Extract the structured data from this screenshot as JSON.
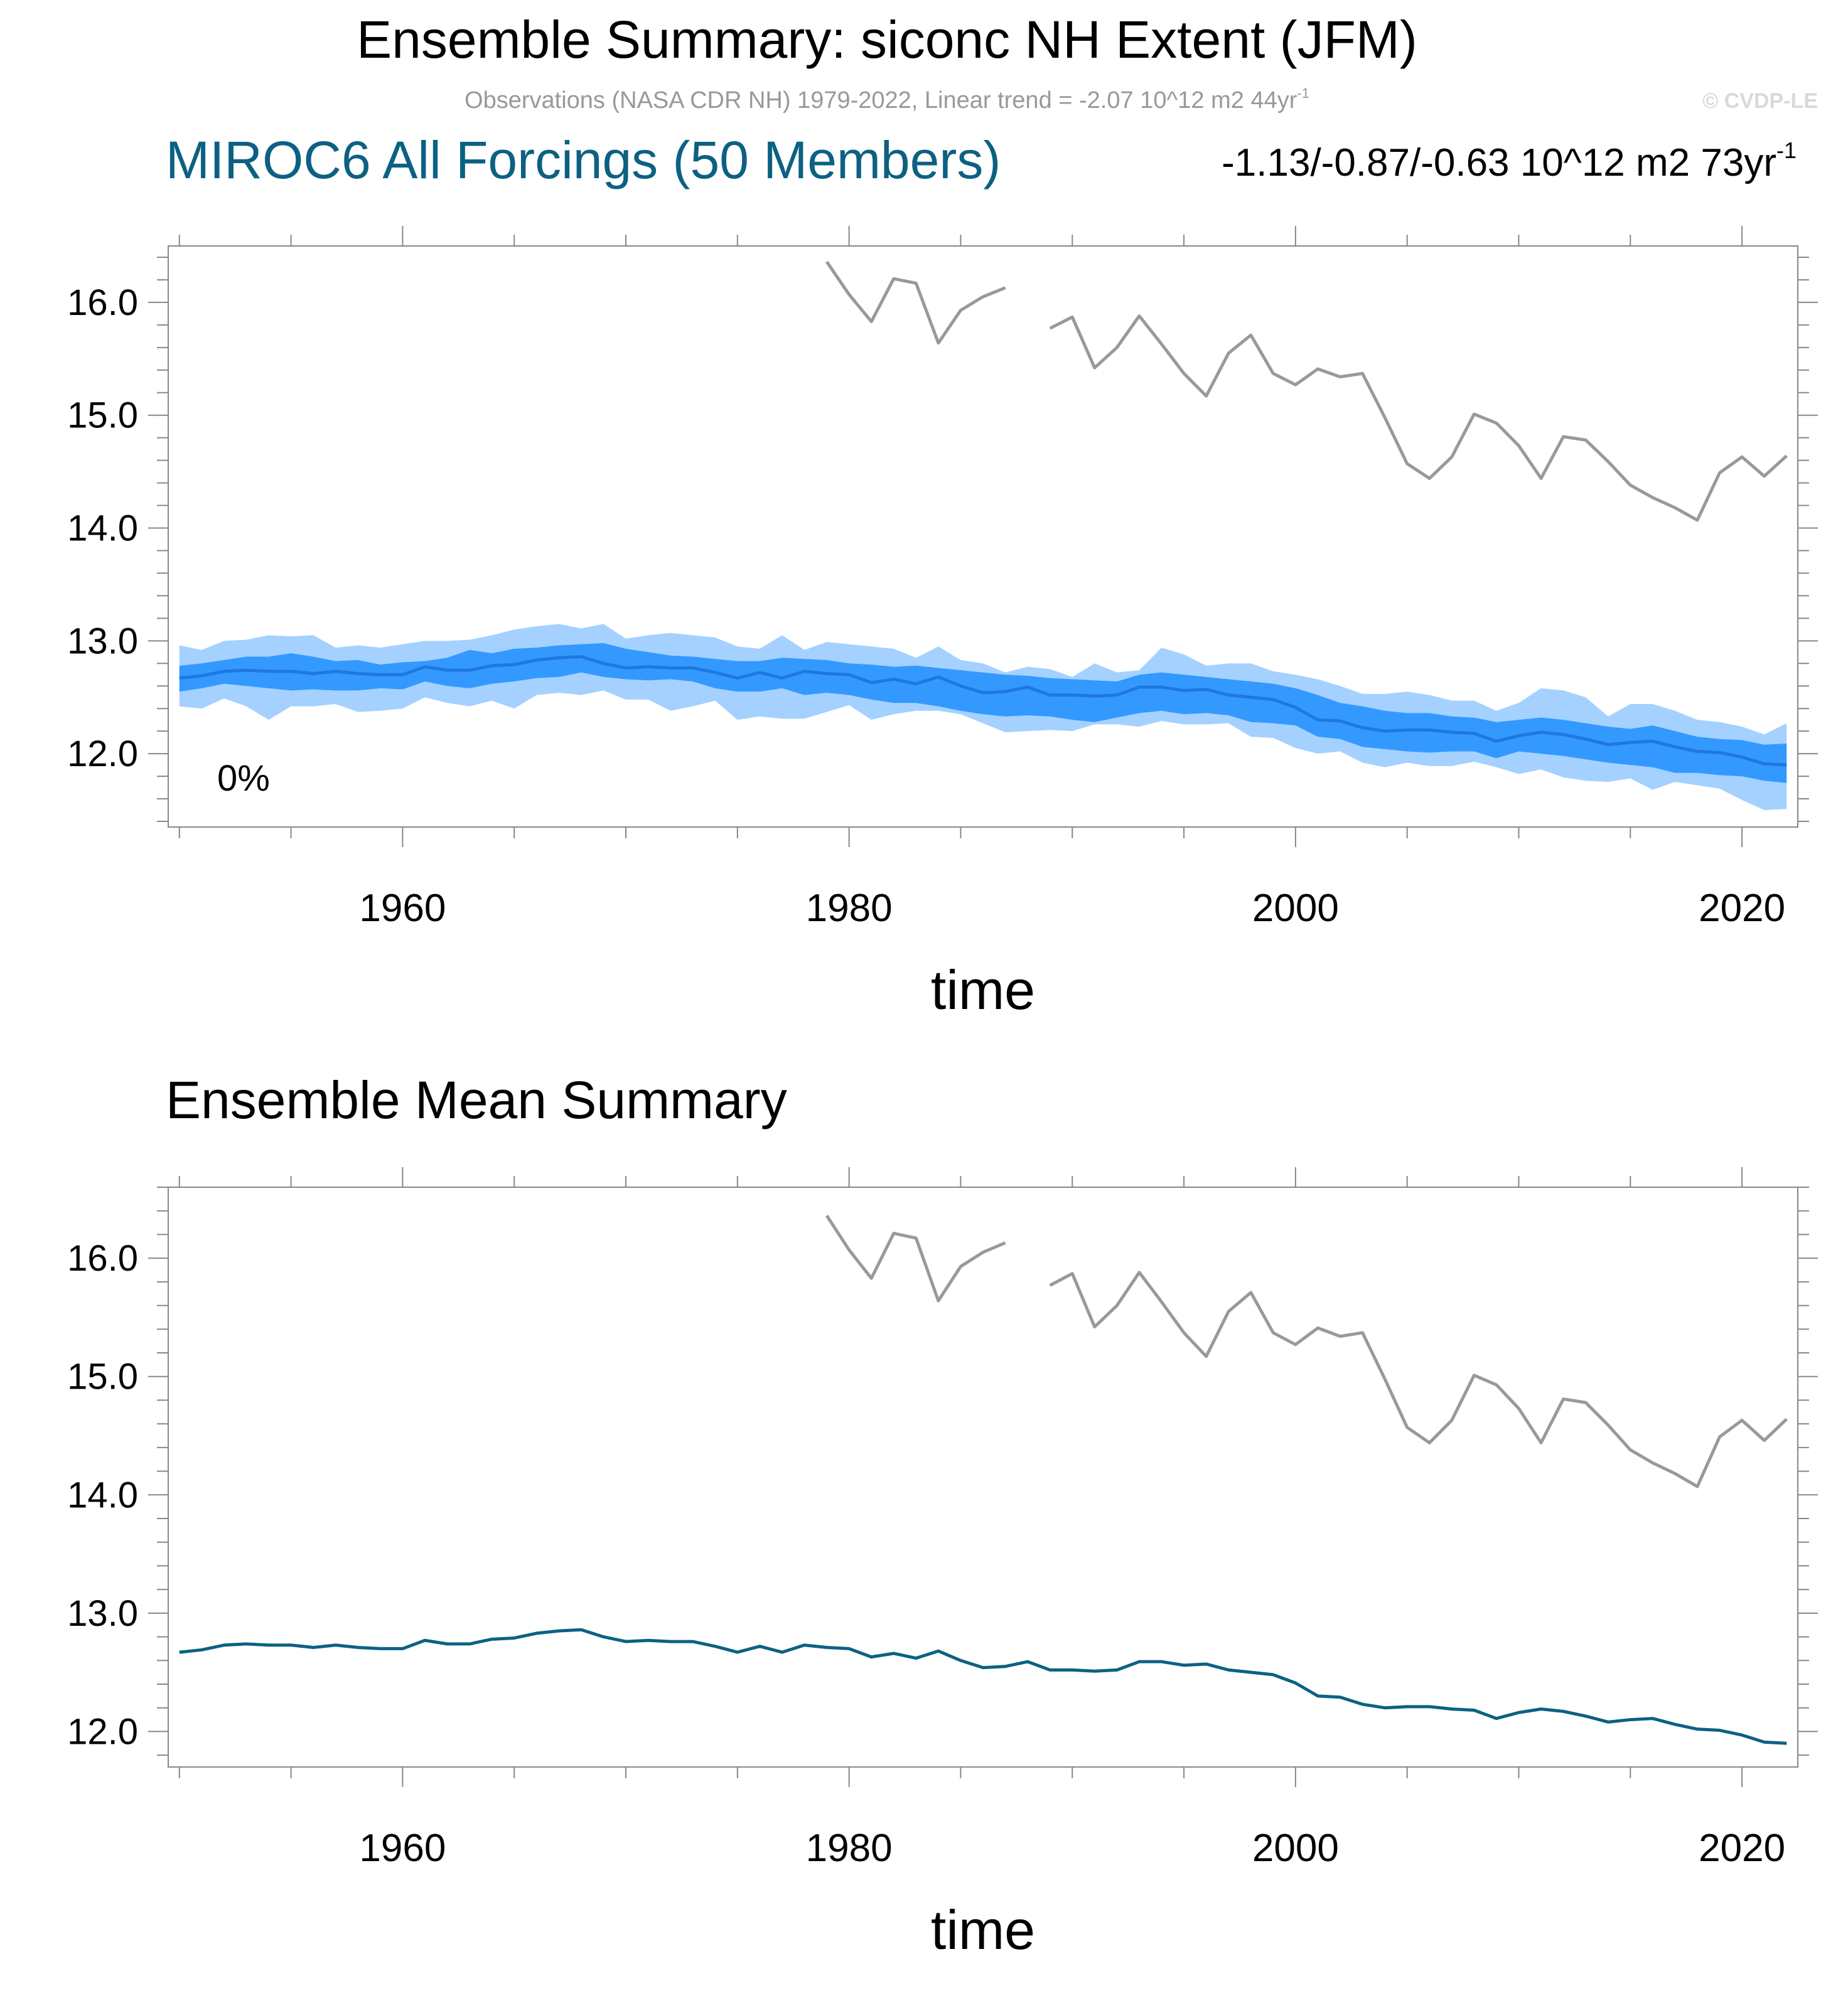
{
  "header": {
    "main_title": "Ensemble Summary: siconc NH Extent (JFM)",
    "obs_info": "Observations (NASA CDR NH) 1979-2022, Linear trend = -2.07 10^12 m2 44yr",
    "obs_info_sup": "-1",
    "copyright": "© CVDP-LE",
    "model_title": "MIROC6 All Forcings (50 Members)",
    "model_trend": "-1.13/-0.87/-0.63 10^12 m2 73yr",
    "model_trend_sup": "-1"
  },
  "colors": {
    "observations": "#999999",
    "ensemble_mean_top": "#1e78e0",
    "band_outer": "#a4d1ff",
    "band_inner": "#3399ff",
    "ensemble_mean_bottom": "#0c6182",
    "model_title": "#0c6182",
    "copyright": "#d9d9d9",
    "obs_info": "#999999",
    "frame": "#888888"
  },
  "chart_data": [
    {
      "type": "line",
      "panel": "top",
      "title": "",
      "xlabel": "time",
      "ylabel": "",
      "xlim": [
        1949.5,
        2022.5
      ],
      "ylim": [
        11.35,
        16.5
      ],
      "xticks": [
        1960,
        1980,
        2000,
        2020
      ],
      "yticks": [
        12.0,
        13.0,
        14.0,
        15.0,
        16.0
      ],
      "ytick_labels": [
        "12.0",
        "13.0",
        "14.0",
        "15.0",
        "16.0"
      ],
      "xtick_labels": [
        "1960",
        "1980",
        "2000",
        "2020"
      ],
      "annotation": "0%",
      "grid": false,
      "x": [
        1950,
        1951,
        1952,
        1953,
        1954,
        1955,
        1956,
        1957,
        1958,
        1959,
        1960,
        1961,
        1962,
        1963,
        1964,
        1965,
        1966,
        1967,
        1968,
        1969,
        1970,
        1971,
        1972,
        1973,
        1974,
        1975,
        1976,
        1977,
        1978,
        1979,
        1980,
        1981,
        1982,
        1983,
        1984,
        1985,
        1986,
        1987,
        1988,
        1989,
        1990,
        1991,
        1992,
        1993,
        1994,
        1995,
        1996,
        1997,
        1998,
        1999,
        2000,
        2001,
        2002,
        2003,
        2004,
        2005,
        2006,
        2007,
        2008,
        2009,
        2010,
        2011,
        2012,
        2013,
        2014,
        2015,
        2016,
        2017,
        2018,
        2019,
        2020,
        2021,
        2022
      ],
      "series": [
        {
          "role": "band_outer_upper",
          "values": [
            12.96,
            12.92,
            13.0,
            13.01,
            13.05,
            13.04,
            13.05,
            12.94,
            12.96,
            12.94,
            12.97,
            13.0,
            13.0,
            13.01,
            13.05,
            13.1,
            13.13,
            13.15,
            13.11,
            13.15,
            13.02,
            13.05,
            13.07,
            13.05,
            13.03,
            12.95,
            12.93,
            13.05,
            12.92,
            12.99,
            12.97,
            12.95,
            12.93,
            12.85,
            12.95,
            12.83,
            12.8,
            12.72,
            12.77,
            12.75,
            12.68,
            12.8,
            12.72,
            12.74,
            12.94,
            12.88,
            12.78,
            12.8,
            12.8,
            12.73,
            12.7,
            12.66,
            12.6,
            12.53,
            12.53,
            12.55,
            12.52,
            12.47,
            12.47,
            12.38,
            12.45,
            12.58,
            12.56,
            12.5,
            12.33,
            12.44,
            12.44,
            12.38,
            12.3,
            12.28,
            12.24,
            12.17,
            12.27
          ]
        },
        {
          "role": "band_inner_upper",
          "values": [
            12.78,
            12.8,
            12.83,
            12.86,
            12.86,
            12.89,
            12.86,
            12.82,
            12.83,
            12.79,
            12.81,
            12.82,
            12.85,
            12.92,
            12.89,
            12.93,
            12.94,
            12.96,
            12.97,
            12.98,
            12.93,
            12.9,
            12.87,
            12.86,
            12.84,
            12.82,
            12.82,
            12.85,
            12.84,
            12.83,
            12.8,
            12.79,
            12.77,
            12.78,
            12.76,
            12.74,
            12.72,
            12.7,
            12.69,
            12.67,
            12.66,
            12.65,
            12.64,
            12.7,
            12.72,
            12.7,
            12.68,
            12.66,
            12.64,
            12.62,
            12.58,
            12.52,
            12.45,
            12.42,
            12.38,
            12.36,
            12.36,
            12.33,
            12.32,
            12.28,
            12.3,
            12.32,
            12.3,
            12.27,
            12.24,
            12.22,
            12.25,
            12.2,
            12.15,
            12.13,
            12.12,
            12.08,
            12.09
          ]
        },
        {
          "role": "band_inner_lower",
          "values": [
            12.55,
            12.58,
            12.62,
            12.6,
            12.58,
            12.56,
            12.57,
            12.56,
            12.56,
            12.58,
            12.57,
            12.64,
            12.6,
            12.58,
            12.62,
            12.64,
            12.67,
            12.68,
            12.72,
            12.68,
            12.66,
            12.65,
            12.66,
            12.64,
            12.58,
            12.55,
            12.55,
            12.58,
            12.52,
            12.54,
            12.52,
            12.48,
            12.45,
            12.45,
            12.42,
            12.38,
            12.35,
            12.33,
            12.34,
            12.33,
            12.3,
            12.28,
            12.32,
            12.36,
            12.38,
            12.35,
            12.36,
            12.34,
            12.28,
            12.27,
            12.25,
            12.15,
            12.13,
            12.06,
            12.04,
            12.02,
            12.01,
            12.02,
            12.02,
            11.96,
            12.02,
            12.0,
            11.98,
            11.95,
            11.92,
            11.9,
            11.88,
            11.83,
            11.83,
            11.81,
            11.8,
            11.76,
            11.74
          ]
        },
        {
          "role": "band_outer_lower",
          "values": [
            12.42,
            12.4,
            12.49,
            12.42,
            12.3,
            12.42,
            12.42,
            12.44,
            12.37,
            12.38,
            12.4,
            12.5,
            12.45,
            12.42,
            12.47,
            12.4,
            12.52,
            12.54,
            12.52,
            12.56,
            12.48,
            12.48,
            12.38,
            12.42,
            12.47,
            12.3,
            12.33,
            12.31,
            12.31,
            12.37,
            12.43,
            12.3,
            12.35,
            12.38,
            12.38,
            12.35,
            12.27,
            12.19,
            12.2,
            12.21,
            12.2,
            12.26,
            12.26,
            12.24,
            12.29,
            12.26,
            12.26,
            12.27,
            12.15,
            12.14,
            12.05,
            12.0,
            12.02,
            11.92,
            11.88,
            11.92,
            11.89,
            11.89,
            11.93,
            11.88,
            11.82,
            11.86,
            11.79,
            11.76,
            11.75,
            11.78,
            11.68,
            11.75,
            11.72,
            11.69,
            11.59,
            11.5,
            11.51
          ]
        },
        {
          "role": "ensemble_mean",
          "values": [
            12.67,
            12.69,
            12.73,
            12.74,
            12.73,
            12.73,
            12.71,
            12.73,
            12.71,
            12.7,
            12.7,
            12.77,
            12.74,
            12.74,
            12.78,
            12.79,
            12.83,
            12.85,
            12.86,
            12.8,
            12.76,
            12.77,
            12.76,
            12.76,
            12.72,
            12.67,
            12.72,
            12.67,
            12.73,
            12.71,
            12.7,
            12.63,
            12.66,
            12.62,
            12.68,
            12.6,
            12.54,
            12.55,
            12.59,
            12.52,
            12.52,
            12.51,
            12.52,
            12.59,
            12.59,
            12.56,
            12.57,
            12.52,
            12.5,
            12.48,
            12.41,
            12.3,
            12.29,
            12.23,
            12.2,
            12.21,
            12.21,
            12.19,
            12.18,
            12.11,
            12.16,
            12.19,
            12.17,
            12.13,
            12.08,
            12.1,
            12.11,
            12.06,
            12.02,
            12.01,
            11.97,
            11.91,
            11.9
          ]
        },
        {
          "role": "observations",
          "x": [
            1979,
            1980,
            1981,
            1982,
            1983,
            1984,
            1985,
            1986,
            1987,
            1988,
            1989,
            1990,
            1991,
            1992,
            1993,
            1994,
            1995,
            1996,
            1997,
            1998,
            1999,
            2000,
            2001,
            2002,
            2003,
            2004,
            2005,
            2006,
            2007,
            2008,
            2009,
            2010,
            2011,
            2012,
            2013,
            2014,
            2015,
            2016,
            2017,
            2018,
            2019,
            2020,
            2021,
            2022
          ],
          "values": [
            16.36,
            16.07,
            15.83,
            16.21,
            16.17,
            15.64,
            15.93,
            16.05,
            16.13,
            null,
            15.77,
            15.87,
            15.42,
            15.6,
            15.88,
            15.63,
            15.37,
            15.17,
            15.55,
            15.71,
            15.37,
            15.27,
            15.41,
            15.34,
            15.37,
            14.98,
            14.57,
            14.44,
            14.63,
            15.01,
            14.93,
            14.73,
            14.44,
            14.81,
            14.78,
            14.59,
            14.38,
            14.27,
            14.18,
            14.07,
            14.49,
            14.63,
            14.46,
            14.64
          ]
        }
      ]
    },
    {
      "type": "line",
      "panel": "bottom",
      "title": "Ensemble Mean Summary",
      "xlabel": "time",
      "ylabel": "",
      "xlim": [
        1949.5,
        2022.5
      ],
      "ylim": [
        11.7,
        16.6
      ],
      "xticks": [
        1960,
        1980,
        2000,
        2020
      ],
      "yticks": [
        12.0,
        13.0,
        14.0,
        15.0,
        16.0
      ],
      "ytick_labels": [
        "12.0",
        "13.0",
        "14.0",
        "15.0",
        "16.0"
      ],
      "xtick_labels": [
        "1960",
        "1980",
        "2000",
        "2020"
      ],
      "grid": false,
      "series_refs": [
        "ensemble_mean",
        "observations"
      ]
    }
  ]
}
